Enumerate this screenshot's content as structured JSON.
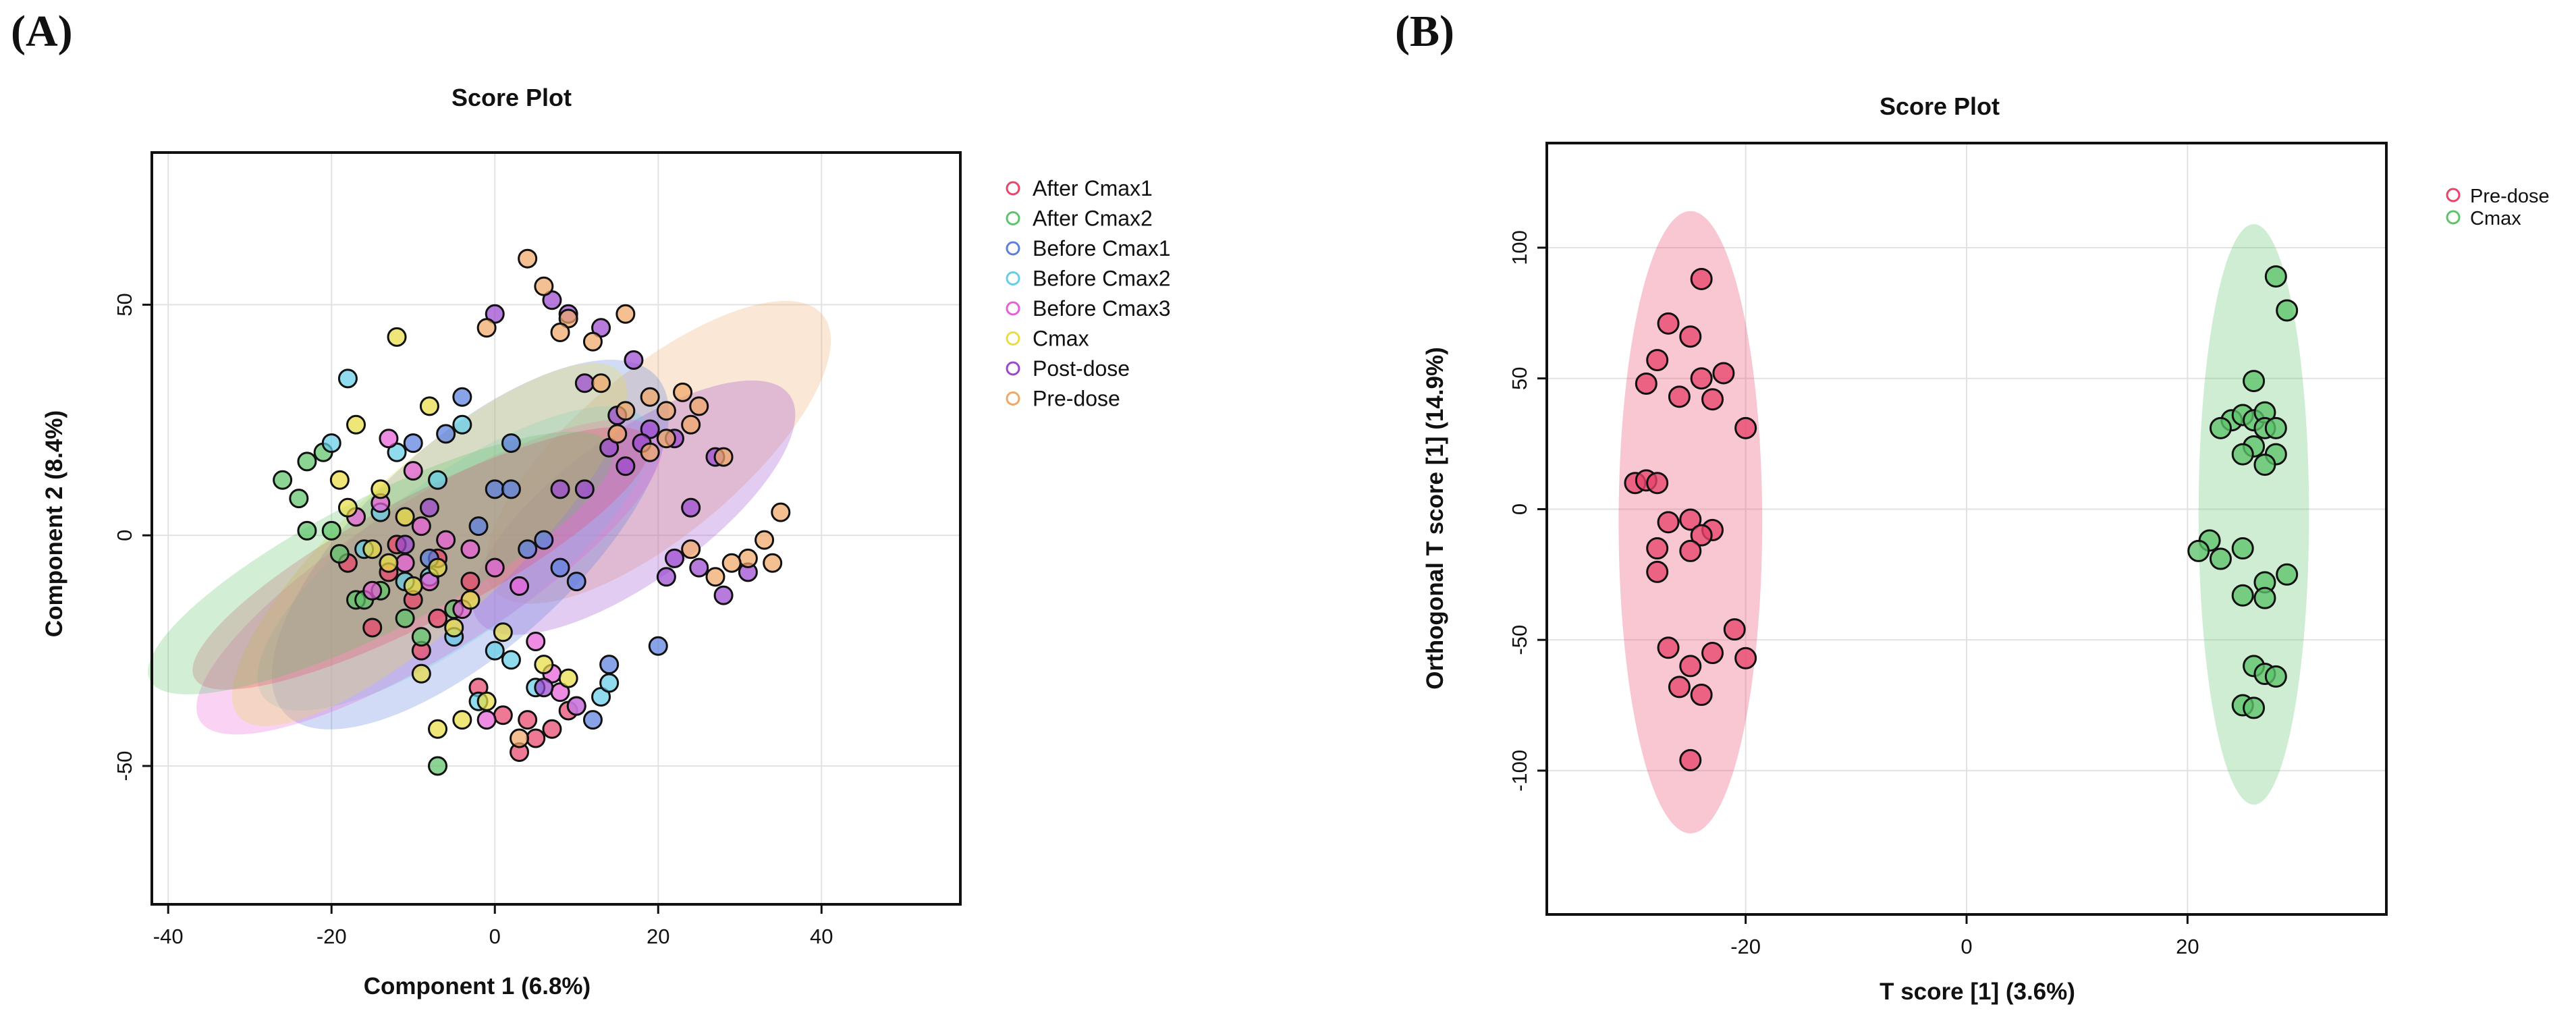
{
  "panels": {
    "a_label": "(A)",
    "b_label": "(B)"
  },
  "chart_data": [
    {
      "type": "scatter",
      "title": "Score Plot",
      "xlabel": "Component 1 (6.8%)",
      "ylabel": "Component 2 (8.4%)",
      "xlim": [
        -42,
        57
      ],
      "ylim": [
        -80,
        83
      ],
      "xticks": [
        -40,
        -20,
        0,
        20,
        40
      ],
      "yticks": [
        -50,
        0,
        50
      ],
      "grid": true,
      "legend_position": "right-top",
      "legend_marker": "hollow circle",
      "series": [
        {
          "name": "After Cmax1",
          "color": "#e8456b",
          "points": [
            [
              3,
              -47
            ],
            [
              5,
              -44
            ],
            [
              7,
              -42
            ],
            [
              1,
              -39
            ],
            [
              -2,
              -33
            ],
            [
              4,
              -40
            ],
            [
              9,
              -38
            ],
            [
              -7,
              -18
            ],
            [
              -10,
              -14
            ],
            [
              -13,
              -8
            ],
            [
              -12,
              -2
            ],
            [
              -7,
              -5
            ],
            [
              -3,
              -10
            ],
            [
              -15,
              -20
            ],
            [
              -18,
              -6
            ],
            [
              -9,
              -25
            ]
          ]
        },
        {
          "name": "After Cmax2",
          "color": "#5ec46b",
          "points": [
            [
              -26,
              12
            ],
            [
              -23,
              1
            ],
            [
              -20,
              1
            ],
            [
              -23,
              16
            ],
            [
              -17,
              -14
            ],
            [
              -14,
              -12
            ],
            [
              -11,
              -18
            ],
            [
              -7,
              -50
            ],
            [
              -19,
              -4
            ],
            [
              -24,
              8
            ],
            [
              -21,
              18
            ],
            [
              -9,
              -22
            ],
            [
              -5,
              -16
            ],
            [
              -16,
              -14
            ]
          ]
        },
        {
          "name": "Before Cmax1",
          "color": "#5b7fe0",
          "points": [
            [
              -4,
              30
            ],
            [
              0,
              10
            ],
            [
              2,
              10
            ],
            [
              6,
              -1
            ],
            [
              8,
              -7
            ],
            [
              10,
              -10
            ],
            [
              -6,
              22
            ],
            [
              -10,
              20
            ],
            [
              -8,
              -5
            ],
            [
              4,
              -3
            ],
            [
              12,
              -40
            ],
            [
              20,
              -24
            ],
            [
              14,
              -28
            ],
            [
              2,
              20
            ],
            [
              -2,
              2
            ]
          ]
        },
        {
          "name": "Before Cmax2",
          "color": "#66cde8",
          "points": [
            [
              -18,
              34
            ],
            [
              -12,
              18
            ],
            [
              -7,
              12
            ],
            [
              -14,
              5
            ],
            [
              -16,
              -3
            ],
            [
              -20,
              20
            ],
            [
              -4,
              24
            ],
            [
              0,
              -25
            ],
            [
              5,
              -33
            ],
            [
              10,
              -37
            ],
            [
              13,
              -35
            ],
            [
              14,
              -32
            ],
            [
              -2,
              -36
            ],
            [
              -8,
              -9
            ],
            [
              -5,
              -22
            ],
            [
              2,
              -27
            ],
            [
              -11,
              -10
            ]
          ]
        },
        {
          "name": "Before Cmax3",
          "color": "#e85fd8",
          "points": [
            [
              -13,
              21
            ],
            [
              -10,
              14
            ],
            [
              -14,
              7
            ],
            [
              -17,
              4
            ],
            [
              -9,
              2
            ],
            [
              -6,
              -1
            ],
            [
              -3,
              -3
            ],
            [
              0,
              -7
            ],
            [
              3,
              -11
            ],
            [
              5,
              -23
            ],
            [
              7,
              -30
            ],
            [
              8,
              -34
            ],
            [
              10,
              -37
            ],
            [
              -1,
              -40
            ],
            [
              -8,
              -10
            ],
            [
              -4,
              -16
            ],
            [
              -11,
              -6
            ],
            [
              -15,
              -12
            ]
          ]
        },
        {
          "name": "Cmax",
          "color": "#e8dd45",
          "points": [
            [
              -12,
              43
            ],
            [
              -8,
              28
            ],
            [
              -17,
              24
            ],
            [
              -19,
              12
            ],
            [
              -14,
              10
            ],
            [
              -11,
              4
            ],
            [
              -15,
              -3
            ],
            [
              -7,
              -7
            ],
            [
              -3,
              -14
            ],
            [
              1,
              -21
            ],
            [
              6,
              -28
            ],
            [
              9,
              -31
            ],
            [
              -1,
              -36
            ],
            [
              -4,
              -40
            ],
            [
              -7,
              -42
            ],
            [
              -9,
              -30
            ],
            [
              -5,
              -20
            ],
            [
              -10,
              -11
            ],
            [
              -18,
              6
            ],
            [
              -13,
              -6
            ]
          ]
        },
        {
          "name": "Post-dose",
          "color": "#9a48d0",
          "points": [
            [
              0,
              48
            ],
            [
              7,
              51
            ],
            [
              9,
              48
            ],
            [
              13,
              45
            ],
            [
              17,
              38
            ],
            [
              11,
              33
            ],
            [
              15,
              26
            ],
            [
              19,
              23
            ],
            [
              22,
              21
            ],
            [
              14,
              19
            ],
            [
              18,
              20
            ],
            [
              16,
              15
            ],
            [
              11,
              10
            ],
            [
              8,
              10
            ],
            [
              24,
              6
            ],
            [
              27,
              17
            ],
            [
              22,
              -5
            ],
            [
              25,
              -7
            ],
            [
              21,
              -9
            ],
            [
              28,
              -13
            ],
            [
              31,
              -8
            ],
            [
              6,
              -33
            ],
            [
              -8,
              6
            ],
            [
              -11,
              -2
            ]
          ]
        },
        {
          "name": "Pre-dose",
          "color": "#f0a868",
          "points": [
            [
              4,
              60
            ],
            [
              6,
              54
            ],
            [
              9,
              47
            ],
            [
              12,
              42
            ],
            [
              16,
              48
            ],
            [
              13,
              33
            ],
            [
              19,
              30
            ],
            [
              23,
              31
            ],
            [
              25,
              28
            ],
            [
              21,
              27
            ],
            [
              16,
              27
            ],
            [
              15,
              22
            ],
            [
              21,
              21
            ],
            [
              24,
              24
            ],
            [
              8,
              44
            ],
            [
              19,
              18
            ],
            [
              28,
              17
            ],
            [
              35,
              5
            ],
            [
              33,
              -1
            ],
            [
              31,
              -5
            ],
            [
              34,
              -6
            ],
            [
              29,
              -6
            ],
            [
              24,
              -3
            ],
            [
              27,
              -9
            ],
            [
              3,
              -44
            ],
            [
              -1,
              45
            ]
          ]
        }
      ],
      "ellipses": [
        {
          "series": "Pre-dose",
          "center": [
            20,
            18
          ],
          "semi_axes": [
            36,
            13
          ],
          "angle_deg": 56
        },
        {
          "series": "Post-dose",
          "center": [
            17,
            6
          ],
          "semi_axes": [
            31,
            12
          ],
          "angle_deg": 52
        },
        {
          "series": "Before Cmax1",
          "center": [
            -3,
            -2
          ],
          "semi_axes": [
            43,
            16
          ],
          "angle_deg": 58
        },
        {
          "series": "Before Cmax2",
          "center": [
            -5,
            -5
          ],
          "semi_axes": [
            38,
            13
          ],
          "angle_deg": 52
        },
        {
          "series": "Before Cmax3",
          "center": [
            -8,
            -9
          ],
          "semi_axes": [
            42,
            13
          ],
          "angle_deg": 48
        },
        {
          "series": "Cmax",
          "center": [
            -8,
            -2
          ],
          "semi_axes": [
            44,
            12
          ],
          "angle_deg": 58
        },
        {
          "series": "After Cmax1",
          "center": [
            -9,
            -5
          ],
          "semi_axes": [
            38,
            11
          ],
          "angle_deg": 43
        },
        {
          "series": "After Cmax2",
          "center": [
            -14,
            -6
          ],
          "semi_axes": [
            38,
            12
          ],
          "angle_deg": 42
        }
      ]
    },
    {
      "type": "scatter",
      "title": "Score Plot",
      "xlabel": "T score [1] (3.6%)",
      "ylabel": "Orthogonal T score [1] (14.9%)",
      "xlim": [
        -38,
        38
      ],
      "ylim": [
        -155,
        140
      ],
      "xticks": [
        -20,
        0,
        20
      ],
      "yticks": [
        -100,
        -50,
        0,
        50,
        100
      ],
      "grid": true,
      "legend_position": "right-top",
      "legend_marker": "hollow circle",
      "series": [
        {
          "name": "Pre-dose",
          "color": "#e8456b",
          "points": [
            [
              -24,
              88
            ],
            [
              -27,
              71
            ],
            [
              -25,
              66
            ],
            [
              -28,
              57
            ],
            [
              -29,
              48
            ],
            [
              -26,
              43
            ],
            [
              -23,
              42
            ],
            [
              -24,
              50
            ],
            [
              -22,
              52
            ],
            [
              -20,
              31
            ],
            [
              -30,
              10
            ],
            [
              -29,
              11
            ],
            [
              -28,
              10
            ],
            [
              -27,
              -5
            ],
            [
              -25,
              -4
            ],
            [
              -23,
              -8
            ],
            [
              -24,
              -10
            ],
            [
              -28,
              -15
            ],
            [
              -25,
              -16
            ],
            [
              -28,
              -24
            ],
            [
              -21,
              -46
            ],
            [
              -23,
              -55
            ],
            [
              -20,
              -57
            ],
            [
              -27,
              -53
            ],
            [
              -25,
              -60
            ],
            [
              -26,
              -68
            ],
            [
              -24,
              -71
            ],
            [
              -25,
              -96
            ]
          ]
        },
        {
          "name": "Cmax",
          "color": "#5ec46b",
          "points": [
            [
              28,
              89
            ],
            [
              29,
              76
            ],
            [
              26,
              49
            ],
            [
              24,
              34
            ],
            [
              25,
              36
            ],
            [
              26,
              34
            ],
            [
              23,
              31
            ],
            [
              27,
              37
            ],
            [
              27,
              31
            ],
            [
              28,
              31
            ],
            [
              26,
              24
            ],
            [
              25,
              21
            ],
            [
              28,
              21
            ],
            [
              27,
              17
            ],
            [
              22,
              -12
            ],
            [
              21,
              -16
            ],
            [
              23,
              -19
            ],
            [
              25,
              -15
            ],
            [
              27,
              -28
            ],
            [
              25,
              -33
            ],
            [
              27,
              -34
            ],
            [
              29,
              -25
            ],
            [
              26,
              -60
            ],
            [
              27,
              -63
            ],
            [
              28,
              -64
            ],
            [
              25,
              -75
            ],
            [
              26,
              -76
            ]
          ]
        }
      ],
      "ellipses": [
        {
          "series": "Pre-dose",
          "center": [
            -25,
            -5
          ],
          "semi_axes": [
            6.5,
            119
          ],
          "angle_deg": 0
        },
        {
          "series": "Cmax",
          "center": [
            26,
            -2
          ],
          "semi_axes": [
            5,
            111
          ],
          "angle_deg": 0
        }
      ]
    }
  ]
}
